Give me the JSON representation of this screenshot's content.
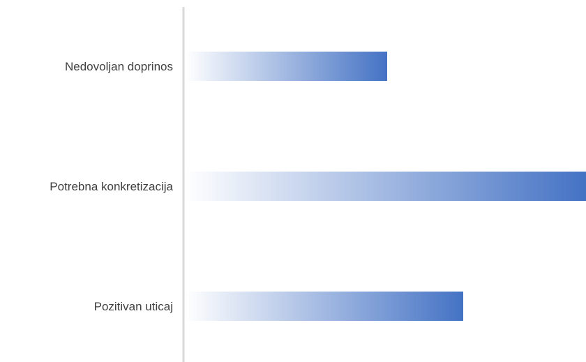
{
  "chart_data": {
    "type": "bar",
    "orientation": "horizontal",
    "categories": [
      "Nedovoljan doprinos",
      "Potrebna konkretizacija",
      "Pozitivan uticaj"
    ],
    "values": [
      289,
      574,
      398
    ],
    "xlim": [
      0,
      574
    ],
    "grid": false,
    "legend": "none",
    "colors": {
      "bar_start": "#ffffff",
      "bar_end": "#4472c4",
      "axis": "#d9d9d9",
      "label": "#404040"
    }
  }
}
